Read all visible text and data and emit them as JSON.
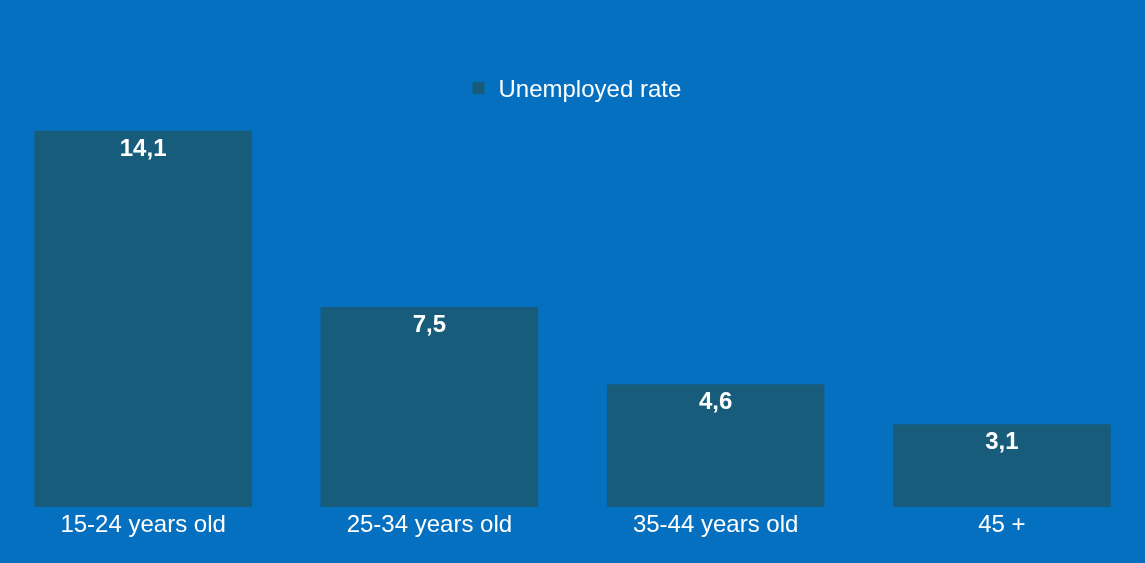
{
  "chart_data": {
    "type": "bar",
    "categories": [
      "15-24 years old",
      "25-34 years old",
      "35-44 years old",
      "45 +"
    ],
    "series": [
      {
        "name": "Unemployed rate",
        "color": "#185c7c",
        "values": [
          14.1,
          7.5,
          4.6,
          3.1
        ],
        "value_labels": [
          "14,1",
          "7,5",
          "4,6",
          "3,1"
        ]
      }
    ],
    "legend": "top",
    "grid": false
  }
}
